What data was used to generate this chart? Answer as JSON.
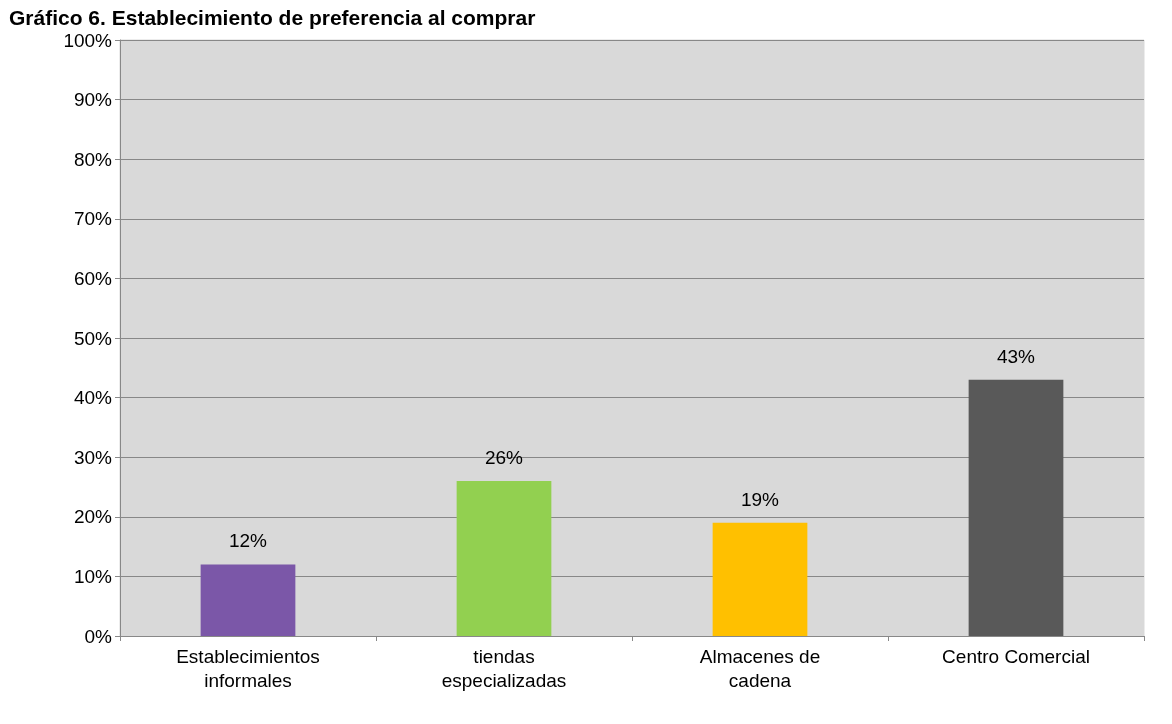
{
  "chart_data": {
    "type": "bar",
    "title": "Gráfico 6. Establecimiento de preferencia al comprar",
    "categories": [
      "Establecimientos\ninformales",
      "tiendas\nespecializadas",
      "Almacenes de\ncadena",
      "Centro Comercial"
    ],
    "values": [
      12,
      26,
      19,
      43
    ],
    "colors": [
      "#7b57a8",
      "#92d050",
      "#ffc000",
      "#595959"
    ],
    "value_labels": [
      "12%",
      "26%",
      "19%",
      "43%"
    ],
    "ylim": [
      0,
      100
    ],
    "yticks": [
      {
        "value": 0,
        "label": "0%"
      },
      {
        "value": 10,
        "label": "10%"
      },
      {
        "value": 20,
        "label": "20%"
      },
      {
        "value": 30,
        "label": "30%"
      },
      {
        "value": 40,
        "label": "40%"
      },
      {
        "value": 50,
        "label": "50%"
      },
      {
        "value": 60,
        "label": "60%"
      },
      {
        "value": 70,
        "label": "70%"
      },
      {
        "value": 80,
        "label": "80%"
      },
      {
        "value": 90,
        "label": "90%"
      },
      {
        "value": 100,
        "label": "100%"
      }
    ],
    "grid": "y"
  }
}
